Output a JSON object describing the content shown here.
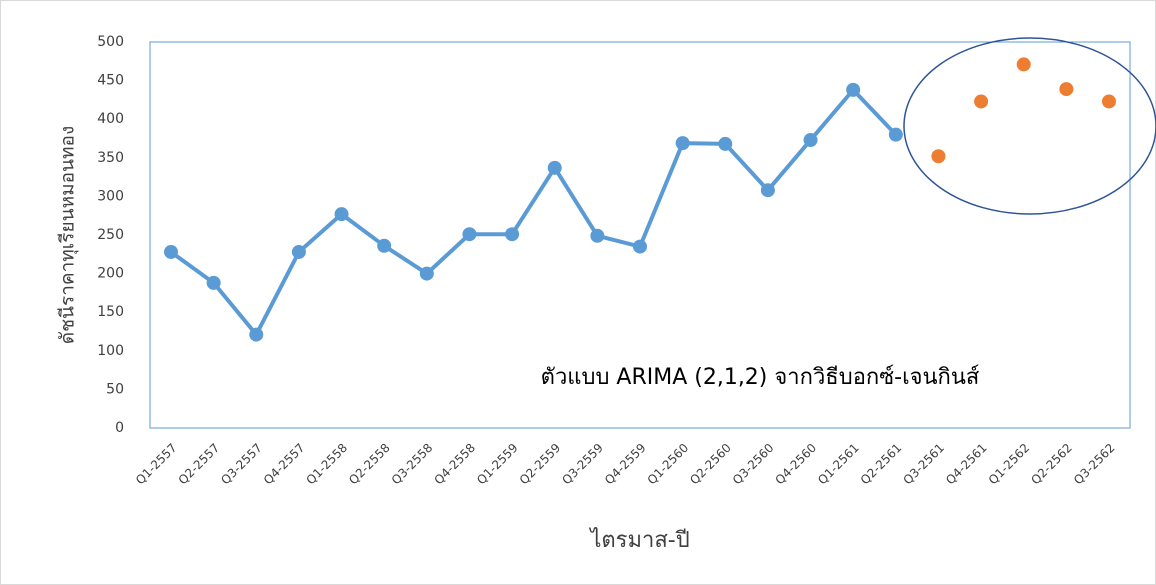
{
  "chart_data": {
    "type": "line",
    "categories": [
      "Q1-2557",
      "Q2-2557",
      "Q3-2557",
      "Q4-2557",
      "Q1-2558",
      "Q2-2558",
      "Q3-2558",
      "Q4-2558",
      "Q1-2559",
      "Q2-2559",
      "Q3-2559",
      "Q4-2559",
      "Q1-2560",
      "Q2-2560",
      "Q3-2560",
      "Q4-2560",
      "Q1-2561",
      "Q2-2561",
      "Q3-2561",
      "Q4-2561",
      "Q1-2562",
      "Q2-2562",
      "Q3-2562"
    ],
    "series": [
      {
        "color": "#5b9bd5",
        "line": true,
        "values": [
          228,
          188,
          121,
          228,
          277,
          236,
          200,
          251,
          251,
          337,
          249,
          235,
          369,
          368,
          308,
          373,
          438,
          380,
          null,
          null,
          null,
          null,
          null
        ]
      },
      {
        "color": "#ed7d31",
        "line": false,
        "values": [
          null,
          null,
          null,
          null,
          null,
          null,
          null,
          null,
          null,
          null,
          null,
          null,
          null,
          null,
          null,
          null,
          null,
          null,
          352,
          423,
          471,
          439,
          423
        ]
      }
    ],
    "ylim": [
      0,
      500
    ],
    "yticks": [
      0,
      50,
      100,
      150,
      200,
      250,
      300,
      350,
      400,
      450,
      500
    ],
    "y_label": "ดัชนีราคาทุเรียนหมอนทอง",
    "x_label": "ไตรมาส-ปี",
    "annotation": "ตัวแบบ ARIMA (2,1,2) จากวิธีบอกซ์-เจนกินส์",
    "grid": false
  }
}
